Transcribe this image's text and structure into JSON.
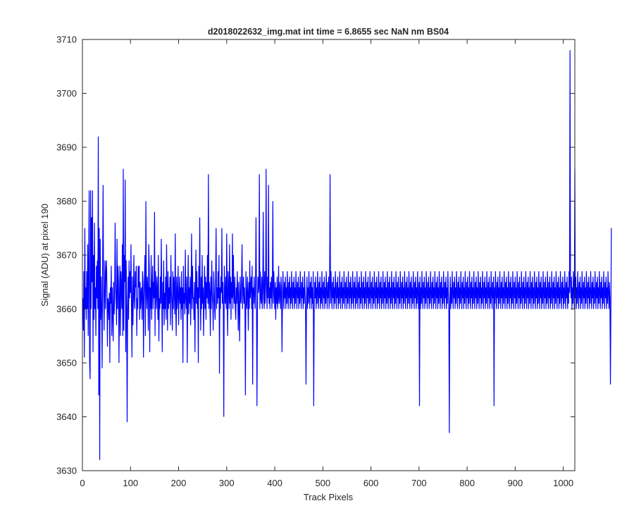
{
  "chart_data": {
    "type": "line",
    "title": "d2018022632_img.mat int time = 6.8655 sec  NaN nm BS04",
    "xlabel": "Track Pixels",
    "ylabel": "Signal (ADU) at pixel 190",
    "xlim": [
      0,
      1024
    ],
    "ylim": [
      3630,
      3710
    ],
    "xticks": [
      0,
      100,
      200,
      300,
      400,
      500,
      600,
      700,
      800,
      900,
      1000
    ],
    "yticks": [
      3630,
      3640,
      3650,
      3660,
      3670,
      3680,
      3690,
      3700,
      3710
    ],
    "grid": false,
    "legend": "none",
    "series": [
      {
        "color": "#0000ff",
        "x_start": 1,
        "x_step": 1,
        "values": [
          3662,
          3656,
          3667,
          3651,
          3675,
          3660,
          3664,
          3658,
          3667,
          3660,
          3672,
          3655,
          3668,
          3682,
          3650,
          3647,
          3682,
          3660,
          3677,
          3665,
          3682,
          3652,
          3670,
          3658,
          3676,
          3660,
          3664,
          3655,
          3668,
          3662,
          3669,
          3660,
          3692,
          3644,
          3675,
          3632,
          3673,
          3658,
          3666,
          3660,
          3649,
          3668,
          3683,
          3664,
          3656,
          3663,
          3669,
          3660,
          3667,
          3669,
          3664,
          3653,
          3662,
          3661,
          3658,
          3663,
          3650,
          3664,
          3661,
          3668,
          3655,
          3664,
          3659,
          3654,
          3665,
          3659,
          3662,
          3676,
          3665,
          3662,
          3657,
          3673,
          3660,
          3668,
          3665,
          3650,
          3662,
          3668,
          3655,
          3667,
          3664,
          3660,
          3672,
          3655,
          3686,
          3656,
          3670,
          3665,
          3684,
          3652,
          3669,
          3660,
          3639,
          3660,
          3666,
          3658,
          3669,
          3662,
          3667,
          3663,
          3672,
          3660,
          3651,
          3666,
          3657,
          3662,
          3670,
          3662,
          3660,
          3667,
          3664,
          3668,
          3655,
          3662,
          3660,
          3668,
          3664,
          3668,
          3658,
          3665,
          3660,
          3663,
          3664,
          3658,
          3667,
          3665,
          3651,
          3662,
          3666,
          3670,
          3655,
          3680,
          3663,
          3660,
          3666,
          3663,
          3656,
          3672,
          3668,
          3652,
          3664,
          3660,
          3670,
          3658,
          3664,
          3668,
          3660,
          3665,
          3662,
          3678,
          3655,
          3667,
          3664,
          3660,
          3666,
          3663,
          3658,
          3670,
          3654,
          3662,
          3660,
          3666,
          3661,
          3673,
          3662,
          3652,
          3665,
          3660,
          3669,
          3657,
          3663,
          3660,
          3666,
          3658,
          3672,
          3664,
          3656,
          3667,
          3660,
          3664,
          3661,
          3666,
          3657,
          3670,
          3663,
          3661,
          3656,
          3667,
          3660,
          3666,
          3664,
          3659,
          3674,
          3661,
          3655,
          3666,
          3660,
          3663,
          3668,
          3657,
          3662,
          3666,
          3661,
          3664,
          3658,
          3667,
          3660,
          3664,
          3650,
          3668,
          3661,
          3663,
          3659,
          3671,
          3662,
          3660,
          3666,
          3650,
          3662,
          3670,
          3659,
          3664,
          3661,
          3666,
          3657,
          3663,
          3674,
          3660,
          3668,
          3662,
          3662,
          3658,
          3665,
          3652,
          3663,
          3671,
          3661,
          3667,
          3660,
          3664,
          3650,
          3668,
          3662,
          3677,
          3663,
          3656,
          3666,
          3660,
          3670,
          3661,
          3664,
          3655,
          3662,
          3668,
          3660,
          3666,
          3658,
          3665,
          3662,
          3670,
          3661,
          3685,
          3660,
          3665,
          3663,
          3655,
          3666,
          3660,
          3669,
          3663,
          3661,
          3656,
          3667,
          3664,
          3660,
          3658,
          3666,
          3675,
          3660,
          3664,
          3661,
          3667,
          3662,
          3670,
          3648,
          3664,
          3660,
          3666,
          3663,
          3675,
          3661,
          3665,
          3660,
          3640,
          3668,
          3663,
          3661,
          3666,
          3660,
          3674,
          3662,
          3655,
          3667,
          3664,
          3660,
          3672,
          3661,
          3666,
          3658,
          3665,
          3662,
          3674,
          3660,
          3670,
          3663,
          3661,
          3666,
          3660,
          3658,
          3664,
          3661,
          3667,
          3663,
          3656,
          3665,
          3660,
          3654,
          3666,
          3662,
          3661,
          3666,
          3672,
          3660,
          3663,
          3666,
          3661,
          3664,
          3660,
          3644,
          3667,
          3662,
          3660,
          3666,
          3663,
          3656,
          3665,
          3660,
          3669,
          3662,
          3664,
          3666,
          3660,
          3668,
          3646,
          3664,
          3661,
          3666,
          3663,
          3660,
          3665,
          3677,
          3662,
          3642,
          3660,
          3666,
          3663,
          3664,
          3685,
          3660,
          3667,
          3662,
          3661,
          3666,
          3660,
          3664,
          3678,
          3662,
          3660,
          3667,
          3661,
          3665,
          3686,
          3663,
          3660,
          3666,
          3662,
          3683,
          3661,
          3664,
          3660,
          3665,
          3662,
          3666,
          3660,
          3664,
          3680,
          3661,
          3667,
          3663,
          3660,
          3665,
          3658,
          3664,
          3661,
          3666,
          3660,
          3662,
          3668,
          3661,
          3665,
          3663,
          3660,
          3666,
          3664,
          3652,
          3661,
          3667,
          3663,
          3660,
          3665,
          3662,
          3666,
          3660,
          3664,
          3661,
          3667,
          3663,
          3660,
          3665,
          3662,
          3666,
          3660,
          3664,
          3661,
          3667,
          3663,
          3660,
          3665,
          3662,
          3666,
          3660,
          3664,
          3661,
          3667,
          3663,
          3660,
          3665,
          3662,
          3666,
          3660,
          3664,
          3661,
          3667,
          3663,
          3660,
          3665,
          3662,
          3666,
          3660,
          3664,
          3661,
          3667,
          3663,
          3660,
          3646,
          3662,
          3666,
          3660,
          3664,
          3661,
          3667,
          3663,
          3660,
          3665,
          3662,
          3666,
          3660,
          3664,
          3661,
          3667,
          3642,
          3660,
          3665,
          3662,
          3666,
          3660,
          3664,
          3661,
          3667,
          3663,
          3660,
          3665,
          3662,
          3666,
          3660,
          3664,
          3661,
          3667,
          3663,
          3660,
          3665,
          3662,
          3666,
          3660,
          3664,
          3661,
          3667,
          3663,
          3660,
          3665,
          3662,
          3666,
          3660,
          3664,
          3685,
          3661,
          3667,
          3663,
          3660,
          3665,
          3662,
          3666,
          3660,
          3664,
          3661,
          3667,
          3663,
          3660,
          3665,
          3662,
          3666,
          3660,
          3664,
          3661,
          3667,
          3663,
          3660,
          3665,
          3662,
          3666,
          3660,
          3664,
          3661,
          3667,
          3663,
          3660,
          3665,
          3662,
          3666,
          3660,
          3664,
          3661,
          3667,
          3663,
          3660,
          3665,
          3662,
          3666,
          3660,
          3664,
          3661,
          3667,
          3663,
          3660,
          3665,
          3662,
          3666,
          3660,
          3664,
          3661,
          3667,
          3663,
          3660,
          3665,
          3662,
          3666,
          3660,
          3664,
          3661,
          3667,
          3663,
          3660,
          3665,
          3662,
          3666,
          3660,
          3664,
          3661,
          3667,
          3663,
          3660,
          3665,
          3662,
          3666,
          3660,
          3664,
          3661,
          3667,
          3663,
          3660,
          3665,
          3662,
          3666,
          3660,
          3664,
          3661,
          3667,
          3663,
          3660,
          3665,
          3662,
          3666,
          3660,
          3664,
          3661,
          3667,
          3663,
          3660,
          3665,
          3662,
          3666,
          3660,
          3664,
          3661,
          3667,
          3663,
          3660,
          3665,
          3662,
          3666,
          3660,
          3664,
          3661,
          3667,
          3663,
          3660,
          3665,
          3662,
          3666,
          3660,
          3664,
          3661,
          3667,
          3663,
          3660,
          3665,
          3662,
          3666,
          3660,
          3664,
          3661,
          3667,
          3663,
          3660,
          3665,
          3662,
          3666,
          3660,
          3664,
          3661,
          3667,
          3663,
          3660,
          3665,
          3662,
          3666,
          3660,
          3664,
          3661,
          3667,
          3663,
          3660,
          3665,
          3662,
          3666,
          3660,
          3664,
          3661,
          3667,
          3663,
          3660,
          3665,
          3662,
          3666,
          3660,
          3664,
          3661,
          3667,
          3663,
          3660,
          3665,
          3662,
          3666,
          3660,
          3664,
          3661,
          3667,
          3663,
          3660,
          3665,
          3642,
          3666,
          3660,
          3664,
          3661,
          3667,
          3663,
          3660,
          3665,
          3662,
          3666,
          3660,
          3664,
          3661,
          3667,
          3663,
          3660,
          3665,
          3662,
          3666,
          3660,
          3664,
          3661,
          3667,
          3663,
          3660,
          3665,
          3662,
          3666,
          3660,
          3664,
          3661,
          3667,
          3663,
          3660,
          3665,
          3662,
          3666,
          3660,
          3664,
          3661,
          3667,
          3663,
          3660,
          3665,
          3662,
          3666,
          3660,
          3664,
          3661,
          3667,
          3663,
          3660,
          3665,
          3662,
          3666,
          3660,
          3664,
          3661,
          3667,
          3663,
          3660,
          3637,
          3662,
          3666,
          3660,
          3664,
          3661,
          3667,
          3663,
          3660,
          3665,
          3662,
          3666,
          3660,
          3664,
          3661,
          3667,
          3663,
          3660,
          3665,
          3662,
          3666,
          3660,
          3664,
          3661,
          3667,
          3663,
          3660,
          3665,
          3662,
          3666,
          3660,
          3664,
          3661,
          3667,
          3663,
          3660,
          3665,
          3662,
          3666,
          3660,
          3664,
          3661,
          3667,
          3663,
          3660,
          3665,
          3662,
          3666,
          3660,
          3664,
          3661,
          3667,
          3663,
          3660,
          3665,
          3662,
          3666,
          3660,
          3664,
          3661,
          3667,
          3663,
          3660,
          3665,
          3662,
          3666,
          3660,
          3664,
          3661,
          3667,
          3663,
          3660,
          3665,
          3662,
          3666,
          3660,
          3664,
          3661,
          3667,
          3663,
          3660,
          3665,
          3662,
          3666,
          3660,
          3664,
          3661,
          3667,
          3663,
          3660,
          3665,
          3662,
          3666,
          3642,
          3664,
          3661,
          3667,
          3663,
          3660,
          3665,
          3662,
          3666,
          3660,
          3664,
          3661,
          3667,
          3663,
          3660,
          3665,
          3662,
          3666,
          3660,
          3664,
          3661,
          3667,
          3663,
          3660,
          3665,
          3662,
          3666,
          3660,
          3664,
          3661,
          3667,
          3663,
          3660,
          3665,
          3662,
          3666,
          3660,
          3664,
          3661,
          3667,
          3663,
          3660,
          3665,
          3662,
          3666,
          3660,
          3664,
          3661,
          3667,
          3663,
          3660,
          3665,
          3662,
          3666,
          3660,
          3664,
          3661,
          3667,
          3663,
          3660,
          3665,
          3662,
          3666,
          3660,
          3664,
          3661,
          3667,
          3663,
          3660,
          3665,
          3662,
          3666,
          3660,
          3664,
          3661,
          3667,
          3663,
          3660,
          3665,
          3662,
          3666,
          3660,
          3664,
          3661,
          3667,
          3663,
          3660,
          3665,
          3662,
          3666,
          3660,
          3664,
          3661,
          3667,
          3663,
          3660,
          3665,
          3662,
          3666,
          3660,
          3664,
          3661,
          3667,
          3663,
          3660,
          3665,
          3662,
          3666,
          3660,
          3664,
          3661,
          3667,
          3663,
          3660,
          3665,
          3662,
          3666,
          3660,
          3664,
          3661,
          3667,
          3663,
          3660,
          3665,
          3662,
          3666,
          3660,
          3664,
          3661,
          3667,
          3663,
          3660,
          3665,
          3662,
          3666,
          3660,
          3664,
          3661,
          3667,
          3663,
          3660,
          3665,
          3662,
          3666,
          3660,
          3664,
          3661,
          3667,
          3663,
          3660,
          3665,
          3662,
          3666,
          3660,
          3664,
          3661,
          3667,
          3663,
          3708,
          3665,
          3662,
          3666,
          3660,
          3664,
          3661,
          3667,
          3663,
          3660,
          3686,
          3662,
          3666,
          3660,
          3664,
          3661,
          3667,
          3663,
          3660,
          3665,
          3662,
          3666,
          3660,
          3664,
          3661,
          3667,
          3663,
          3660,
          3665,
          3662,
          3666,
          3660,
          3664,
          3661,
          3667,
          3663,
          3660,
          3665,
          3662,
          3666,
          3660,
          3664,
          3661,
          3667,
          3663,
          3660,
          3665,
          3662,
          3666,
          3660,
          3664,
          3661,
          3667,
          3663,
          3660,
          3665,
          3662,
          3666,
          3660,
          3664,
          3661,
          3667,
          3663,
          3660,
          3665,
          3662,
          3666,
          3660,
          3664,
          3661,
          3667,
          3663,
          3660,
          3665,
          3662,
          3666,
          3660,
          3664,
          3661,
          3667,
          3663,
          3660,
          3665,
          3662,
          3646,
          3660,
          3675
        ]
      }
    ]
  }
}
